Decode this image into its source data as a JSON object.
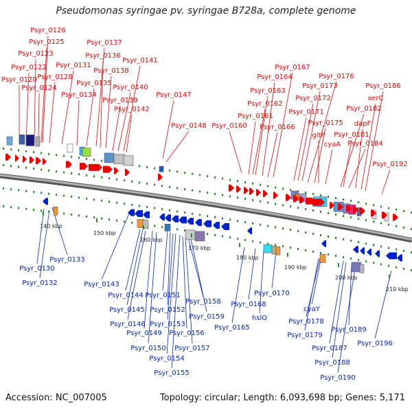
{
  "title": "Pseudomonas syringae pv. syringae B728a, complete genome",
  "footer": {
    "accession": "Accession: NC_007005",
    "summary": "Topology: circular; Length: 6,093,698 bp; Genes: 5,171"
  },
  "colors": {
    "forward": "#ee0000",
    "reverse": "#0022cc",
    "backbone": "#808080"
  },
  "scale_labels": [
    "140 kbp",
    "150 kbp",
    "160 kbp",
    "170 kbp",
    "180 kbp",
    "190 kbp",
    "200 kbp",
    "210 kbp"
  ],
  "forward_labels": [
    "Psyr_0126",
    "Psyr_0125",
    "Psyr_0123",
    "Psyr_0122",
    "Psyr_0120",
    "Psyr_0124",
    "Psyr_0128",
    "Psyr_0131",
    "Psyr_0134",
    "Psyr_0135",
    "Psyr_0137",
    "Psyr_0136",
    "Psyr_0138",
    "Psyr_0141",
    "Psyr_0140",
    "Psyr_0139",
    "Psyr_0142",
    "Psyr_0147",
    "Psyr_0148",
    "Psyr_0160",
    "Psyr_0161",
    "Psyr_0162",
    "Psyr_0163",
    "Psyr_0164",
    "Psyr_0167",
    "Psyr_0166",
    "Psyr_0171",
    "Psyr_0172",
    "Psyr_0173",
    "Psyr_0176",
    "Psyr_0175",
    "gltP",
    "cyaA",
    "Psyr_0182",
    "Psyr_0181",
    "Psyr_0184",
    "dapF",
    "xerC",
    "Psyr_0186",
    "Psyr_0192"
  ],
  "reverse_labels": [
    "Psyr_0130",
    "Psyr_0133",
    "Psyr_0132",
    "Psyr_0143",
    "Psyr_0144",
    "Psyr_0145",
    "Psyr_0146",
    "Psyr_0149",
    "Psyr_0150",
    "Psyr_0151",
    "Psyr_0152",
    "Psyr_0153",
    "Psyr_0154",
    "Psyr_0155",
    "Psyr_0156",
    "Psyr_0157",
    "Psyr_0158",
    "Psyr_0159",
    "Psyr_0165",
    "Psyr_0168",
    "hslO",
    "Psyr_0170",
    "cyaY",
    "Psyr_0178",
    "Psyr_0179",
    "Psyr_0187",
    "Psyr_0188",
    "Psyr_0189",
    "Psyr_0190",
    "Psyr_0196"
  ]
}
